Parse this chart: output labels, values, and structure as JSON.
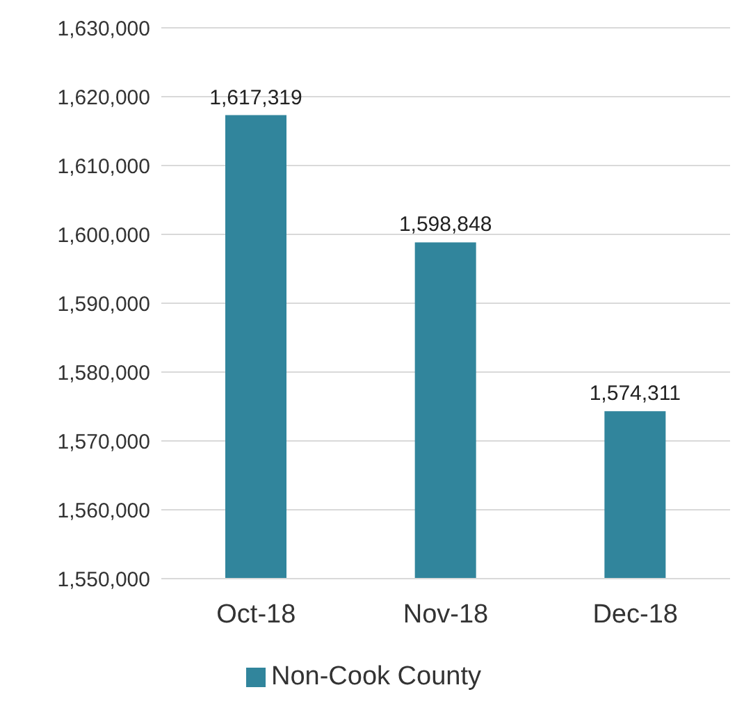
{
  "chart_data": {
    "type": "bar",
    "categories": [
      "Oct-18",
      "Nov-18",
      "Dec-18"
    ],
    "series": [
      {
        "name": "Non-Cook County",
        "color": "#31859c",
        "values": [
          1617319,
          1598848,
          1574311
        ],
        "value_labels": [
          "1,617,319",
          "1,598,848",
          "1,574,311"
        ]
      }
    ],
    "ylim": [
      1550000,
      1630000
    ],
    "yticks": [
      {
        "value": 1550000,
        "label": "1,550,000"
      },
      {
        "value": 1560000,
        "label": "1,560,000"
      },
      {
        "value": 1570000,
        "label": "1,570,000"
      },
      {
        "value": 1580000,
        "label": "1,580,000"
      },
      {
        "value": 1590000,
        "label": "1,590,000"
      },
      {
        "value": 1600000,
        "label": "1,600,000"
      },
      {
        "value": 1610000,
        "label": "1,610,000"
      },
      {
        "value": 1620000,
        "label": "1,620,000"
      },
      {
        "value": 1630000,
        "label": "1,630,000"
      }
    ],
    "grid": "y",
    "legend": "bottom"
  }
}
